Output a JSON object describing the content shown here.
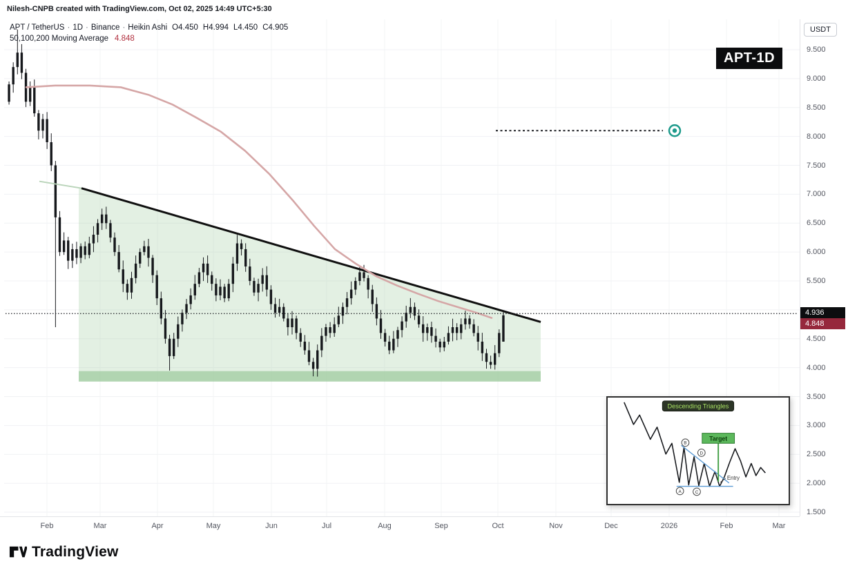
{
  "header": {
    "credit": "Nilesh-CNPB created with TradingView.com, Oct 02, 2025 14:49 UTC+5:30"
  },
  "toolbar": {
    "currency_button": "USDT"
  },
  "watermark_badge": "APT-1D",
  "legend": {
    "line1": {
      "pair": "APT / TetherUS",
      "interval": "1D",
      "exchange": "Binance",
      "style": "Heikin Ashi",
      "o": "O4.450",
      "h": "H4.994",
      "l": "L4.450",
      "c": "C4.905"
    },
    "line2": {
      "label": "50,100,200 Moving Average",
      "value": "4.848"
    }
  },
  "price_axis": {
    "ticks": [
      "9.500",
      "9.000",
      "8.500",
      "8.000",
      "7.500",
      "7.000",
      "6.500",
      "6.000",
      "5.500",
      "4.500",
      "4.000",
      "3.500",
      "3.000",
      "2.500",
      "2.000",
      "1.500"
    ],
    "last_price_label": "4.936",
    "ma_price_label": "4.848"
  },
  "time_axis": {
    "ticks": [
      "Feb",
      "Mar",
      "Apr",
      "May",
      "Jun",
      "Jul",
      "Aug",
      "Sep",
      "Oct",
      "Nov",
      "Dec",
      "2026",
      "Feb",
      "Mar"
    ]
  },
  "footer": {
    "brand": "TradingView"
  },
  "inset": {
    "title": "Descending Triangles",
    "target": "Target",
    "entry": "Entry",
    "letters": [
      "A",
      "B",
      "C",
      "D"
    ]
  },
  "colors": {
    "candle": "#16181c",
    "ma_line": "#d5a6a6",
    "triangle_fill": "rgba(167,208,167,0.32)",
    "support_band": "rgba(137,191,137,0.55)",
    "trendline": "#0f0f0f",
    "trendline_extension": "#b9d4b9",
    "target_circle": "#1d9a8b",
    "dotted_line": "#1c1e23",
    "last_price_bg": "#0c0d0f",
    "ma_label_bg": "#96283c",
    "legend_ma_value": "#b1303f"
  },
  "chart_data": {
    "type": "candlestick",
    "symbol": "APT / TetherUS",
    "exchange": "Binance",
    "interval": "1D",
    "style": "Heikin Ashi",
    "title": "APT-1D",
    "ylabel": "USDT",
    "ylim": [
      1.5,
      9.5
    ],
    "price_ticks": [
      9.5,
      9.0,
      8.5,
      8.0,
      7.5,
      7.0,
      6.5,
      6.0,
      5.5,
      5.0,
      4.5,
      4.0,
      3.5,
      3.0,
      2.5,
      2.0,
      1.5
    ],
    "months": [
      "Feb",
      "Mar",
      "Apr",
      "May",
      "Jun",
      "Jul",
      "Aug",
      "Sep",
      "Oct",
      "Nov",
      "Dec",
      "2026",
      "Feb",
      "Mar"
    ],
    "last_ohlc": {
      "open": 4.45,
      "high": 4.994,
      "low": 4.45,
      "close": 4.905
    },
    "candles": {
      "first_open": 8.6,
      "closes": [
        8.9,
        9.2,
        9.45,
        9.1,
        8.6,
        8.85,
        8.4,
        8.1,
        8.3,
        7.9,
        7.5,
        6.6,
        6.0,
        6.2,
        5.85,
        6.05,
        5.9,
        6.1,
        5.95,
        6.15,
        6.3,
        6.5,
        6.65,
        6.5,
        6.25,
        6.0,
        5.7,
        5.45,
        5.3,
        5.55,
        5.8,
        6.0,
        6.1,
        5.9,
        5.6,
        5.2,
        4.85,
        4.5,
        4.2,
        4.5,
        4.75,
        4.95,
        5.1,
        5.25,
        5.45,
        5.65,
        5.8,
        5.6,
        5.45,
        5.25,
        5.4,
        5.2,
        5.45,
        5.8,
        6.15,
        6.05,
        5.75,
        5.5,
        5.3,
        5.45,
        5.6,
        5.35,
        5.1,
        4.95,
        5.05,
        4.85,
        4.7,
        4.85,
        4.6,
        4.45,
        4.3,
        4.1,
        3.98,
        4.3,
        4.55,
        4.7,
        4.6,
        4.75,
        4.9,
        5.05,
        5.2,
        5.35,
        5.5,
        5.65,
        5.55,
        5.35,
        5.1,
        4.85,
        4.6,
        4.45,
        4.3,
        4.5,
        4.65,
        4.8,
        4.95,
        5.05,
        4.9,
        4.75,
        4.6,
        4.7,
        4.55,
        4.45,
        4.35,
        4.45,
        4.6,
        4.7,
        4.6,
        4.75,
        4.85,
        4.75,
        4.6,
        4.45,
        4.25,
        4.1,
        4.05,
        4.25,
        4.6,
        4.905
      ],
      "overrides": {
        "2": {
          "high": 9.85
        },
        "11": {
          "low": 4.7
        },
        "38": {
          "low": 3.95
        },
        "72": {
          "low": 3.85
        },
        "114": {
          "low": 3.98
        },
        "117": {
          "open": 4.45,
          "high": 4.994,
          "low": 4.45,
          "close": 4.905
        }
      }
    },
    "ma": {
      "label": "50,100,200 Moving Average",
      "last_value": 4.848,
      "points": [
        [
          38,
          8.85
        ],
        [
          80,
          8.88
        ],
        [
          130,
          8.88
        ],
        [
          175,
          8.85
        ],
        [
          215,
          8.72
        ],
        [
          250,
          8.55
        ],
        [
          285,
          8.32
        ],
        [
          320,
          8.08
        ],
        [
          355,
          7.75
        ],
        [
          390,
          7.35
        ],
        [
          425,
          6.88
        ],
        [
          455,
          6.45
        ],
        [
          485,
          6.05
        ],
        [
          515,
          5.8
        ],
        [
          545,
          5.58
        ],
        [
          575,
          5.42
        ],
        [
          605,
          5.28
        ],
        [
          635,
          5.15
        ],
        [
          665,
          5.04
        ],
        [
          690,
          4.95
        ],
        [
          712,
          4.86
        ]
      ]
    },
    "annotations": {
      "descending_triangle": {
        "resistance_start": {
          "x": 118,
          "price": 7.08
        },
        "resistance_end": {
          "x": 783,
          "price": 4.79
        },
        "support_zone": {
          "price_top": 3.94,
          "price_bottom": 3.76
        },
        "x_start": 114,
        "x_end": 783
      },
      "target_line": {
        "price": 8.1,
        "x_start": 718,
        "x_end": 960,
        "marker_x": 977
      },
      "last_price_line": {
        "price": 4.936
      }
    }
  }
}
